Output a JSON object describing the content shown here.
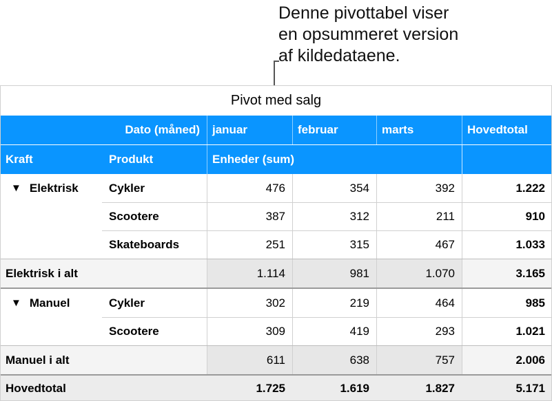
{
  "callout": {
    "lines": [
      "Denne pivottabel viser",
      "en opsummeret version",
      "af kildedataene."
    ]
  },
  "table": {
    "title": "Pivot med salg",
    "header_row1": {
      "date_label": "Dato (måned)",
      "months": [
        "januar",
        "februar",
        "marts"
      ],
      "grand_total": "Hovedtotal"
    },
    "header_row2": {
      "kraft": "Kraft",
      "produkt": "Produkt",
      "measure": "Enheder (sum)"
    },
    "groups": [
      {
        "name": "Elektrisk",
        "expander": "▼",
        "rows": [
          {
            "product": "Cykler",
            "values": [
              "476",
              "354",
              "392"
            ],
            "total": "1.222"
          },
          {
            "product": "Scootere",
            "values": [
              "387",
              "312",
              "211"
            ],
            "total": "910"
          },
          {
            "product": "Skateboards",
            "values": [
              "251",
              "315",
              "467"
            ],
            "total": "1.033"
          }
        ],
        "subtotal": {
          "label": "Elektrisk i alt",
          "values": [
            "1.114",
            "981",
            "1.070"
          ],
          "total": "3.165"
        }
      },
      {
        "name": "Manuel",
        "expander": "▼",
        "rows": [
          {
            "product": "Cykler",
            "values": [
              "302",
              "219",
              "464"
            ],
            "total": "985"
          },
          {
            "product": "Scootere",
            "values": [
              "309",
              "419",
              "293"
            ],
            "total": "1.021"
          }
        ],
        "subtotal": {
          "label": "Manuel i alt",
          "values": [
            "611",
            "638",
            "757"
          ],
          "total": "2.006"
        }
      }
    ],
    "grand_total_row": {
      "label": "Hovedtotal",
      "values": [
        "1.725",
        "1.619",
        "1.827"
      ],
      "total": "5.171"
    },
    "colors": {
      "header_blue": "#0a95ff",
      "subtotal_bg": "#f4f4f4",
      "subtotal_value_bg": "#e7e7e7",
      "grand_total_bg": "#ececec",
      "line": "#d0d0d0"
    }
  }
}
